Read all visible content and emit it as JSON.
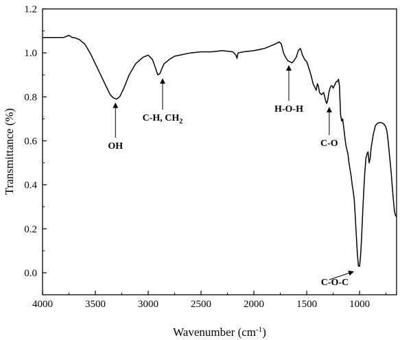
{
  "chart_data": {
    "type": "line",
    "xlabel": "Wavenumber (cm",
    "xlabel_sup": "-1",
    "xlabel_close": ")",
    "ylabel": "Transmittance (%)",
    "xlim": [
      4000,
      650
    ],
    "x_reversed": true,
    "ylim": [
      -0.1,
      1.2
    ],
    "x_ticks": [
      4000,
      3500,
      3000,
      2500,
      2000,
      1500,
      1000
    ],
    "x_tick_labels": [
      "4000",
      "3500",
      "3000",
      "2500",
      "2000",
      "1500",
      "1000"
    ],
    "y_ticks": [
      0.0,
      0.2,
      0.4,
      0.6,
      0.8,
      1.0,
      1.2
    ],
    "y_tick_labels": [
      "0.0",
      "0.2",
      "0.4",
      "0.6",
      "0.8",
      "1.0",
      "1.2"
    ],
    "grid": false,
    "series": [
      {
        "color": "#000000",
        "x": [
          4000,
          3900,
          3800,
          3750,
          3720,
          3700,
          3650,
          3600,
          3550,
          3500,
          3450,
          3400,
          3360,
          3330,
          3300,
          3270,
          3230,
          3180,
          3120,
          3050,
          3000,
          2960,
          2930,
          2910,
          2890,
          2870,
          2850,
          2800,
          2750,
          2700,
          2600,
          2500,
          2400,
          2300,
          2200,
          2170,
          2160,
          2150,
          2100,
          2000,
          1900,
          1800,
          1760,
          1740,
          1720,
          1700,
          1680,
          1660,
          1640,
          1620,
          1600,
          1580,
          1560,
          1540,
          1520,
          1500,
          1480,
          1460,
          1440,
          1420,
          1410,
          1400,
          1390,
          1380,
          1360,
          1340,
          1330,
          1320,
          1310,
          1300,
          1290,
          1280,
          1270,
          1260,
          1250,
          1240,
          1230,
          1220,
          1210,
          1200,
          1190,
          1185,
          1180,
          1170,
          1160,
          1150,
          1140,
          1130,
          1120,
          1110,
          1100,
          1090,
          1080,
          1070,
          1060,
          1050,
          1040,
          1030,
          1020,
          1010,
          1000,
          990,
          980,
          970,
          960,
          950,
          940,
          930,
          920,
          910,
          900,
          890,
          880,
          870,
          860,
          850,
          840,
          830,
          820,
          810,
          800,
          790,
          780,
          770,
          760,
          750,
          740,
          730,
          720,
          710,
          700,
          690,
          680,
          670,
          660,
          650
        ],
        "y": [
          1.07,
          1.07,
          1.07,
          1.08,
          1.07,
          1.07,
          1.06,
          1.04,
          1.0,
          0.95,
          0.9,
          0.85,
          0.81,
          0.795,
          0.79,
          0.8,
          0.84,
          0.9,
          0.95,
          0.98,
          0.99,
          0.97,
          0.93,
          0.9,
          0.905,
          0.93,
          0.95,
          0.97,
          0.985,
          0.99,
          1.0,
          1.005,
          1.005,
          1.01,
          1.005,
          0.99,
          0.975,
          1.0,
          1.005,
          1.01,
          1.02,
          1.04,
          1.05,
          1.04,
          1.0,
          0.98,
          0.965,
          0.96,
          0.955,
          0.965,
          0.98,
          1.01,
          1.02,
          0.99,
          0.97,
          0.96,
          0.93,
          0.9,
          0.86,
          0.84,
          0.83,
          0.86,
          0.85,
          0.82,
          0.81,
          0.82,
          0.8,
          0.78,
          0.77,
          0.79,
          0.82,
          0.84,
          0.85,
          0.85,
          0.84,
          0.85,
          0.86,
          0.87,
          0.87,
          0.88,
          0.85,
          0.78,
          0.72,
          0.69,
          0.7,
          0.66,
          0.62,
          0.58,
          0.56,
          0.54,
          0.5,
          0.47,
          0.44,
          0.4,
          0.37,
          0.33,
          0.25,
          0.16,
          0.08,
          0.03,
          0.03,
          0.08,
          0.17,
          0.28,
          0.38,
          0.46,
          0.52,
          0.54,
          0.55,
          0.5,
          0.52,
          0.57,
          0.6,
          0.63,
          0.65,
          0.67,
          0.675,
          0.68,
          0.682,
          0.683,
          0.683,
          0.682,
          0.68,
          0.676,
          0.67,
          0.66,
          0.64,
          0.6,
          0.55,
          0.5,
          0.45,
          0.39,
          0.33,
          0.28,
          0.26,
          0.255
        ]
      }
    ],
    "annotations": [
      {
        "label": "OH",
        "sub": "",
        "x": 3310,
        "y": 0.79
      },
      {
        "label": "C-H, CH",
        "sub": "2",
        "x": 2890,
        "y": 0.9
      },
      {
        "label": "H-O-H",
        "sub": "",
        "x": 1650,
        "y": 0.96
      },
      {
        "label": "C-O",
        "sub": "",
        "x": 1300,
        "y": 0.77
      },
      {
        "label": "C-O-C",
        "sub": "",
        "x": 1020,
        "y": 0.03
      }
    ]
  }
}
